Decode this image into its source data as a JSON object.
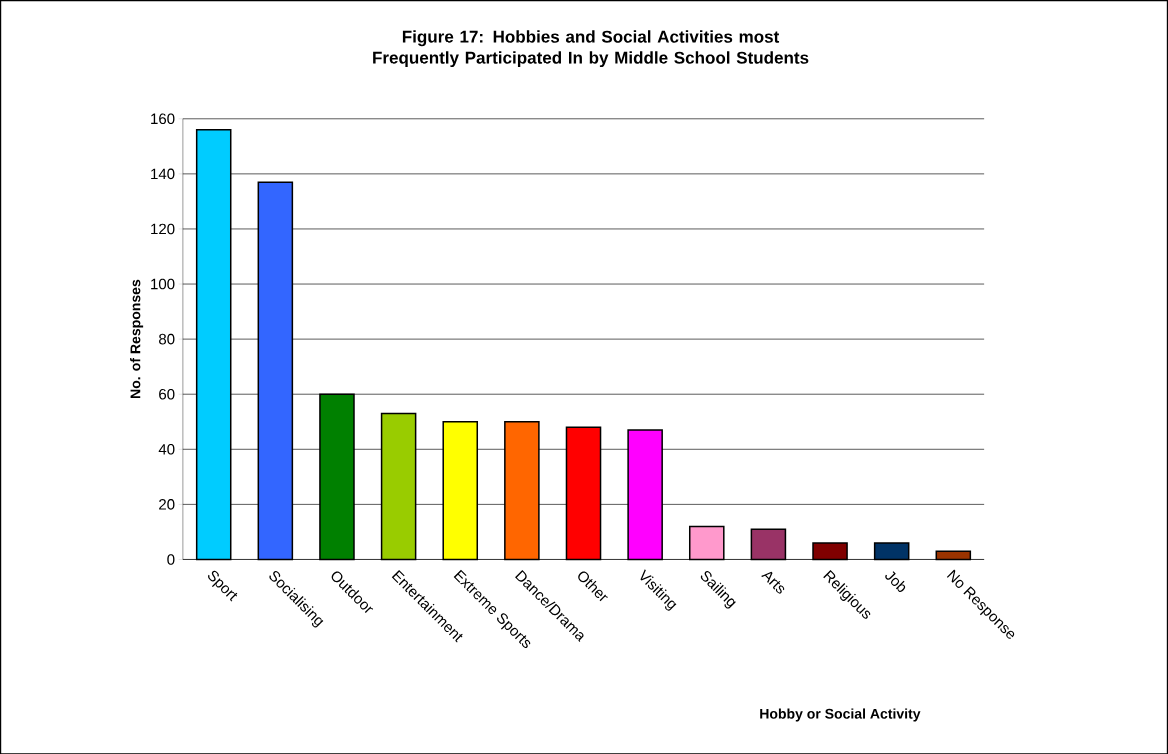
{
  "chart_data": {
    "type": "bar",
    "title": "Figure 17: Hobbies and Social Activities most Frequently Participated In by Middle School Students",
    "categories": [
      "Sport",
      "Socialising",
      "Outdoor",
      "Entertainment",
      "Extreme Sports",
      "Dance/Drama",
      "Other",
      "Visiting",
      "Sailing",
      "Arts",
      "Religious",
      "Job",
      "No Response"
    ],
    "values": [
      156,
      137,
      60,
      53,
      50,
      50,
      48,
      47,
      12,
      11,
      6,
      6,
      3
    ],
    "colors": [
      "#00ccff",
      "#3366ff",
      "#008000",
      "#99cc00",
      "#ffff00",
      "#ff6600",
      "#ff0000",
      "#ff00ff",
      "#ff99cc",
      "#993366",
      "#800000",
      "#003366",
      "#993300"
    ],
    "xlabel": "Hobby or Social Activity",
    "ylabel": "No. of Responses",
    "ylim": [
      0,
      160
    ],
    "yticks": [
      0,
      20,
      40,
      60,
      80,
      100,
      120,
      140,
      160
    ],
    "grid": "y"
  }
}
